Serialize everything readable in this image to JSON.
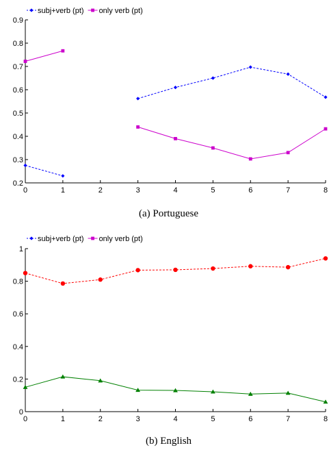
{
  "chart_data": [
    {
      "type": "line",
      "caption": "(a) Portuguese",
      "x": [
        0,
        1,
        2,
        3,
        4,
        5,
        6,
        7,
        8
      ],
      "xlim": [
        0,
        8
      ],
      "ylim": [
        0.2,
        0.9
      ],
      "xticks": [
        "0",
        "1",
        "2",
        "3",
        "4",
        "5",
        "6",
        "7",
        "8"
      ],
      "yticks": [
        "0.2",
        "0.3",
        "0.4",
        "0.5",
        "0.6",
        "0.7",
        "0.8",
        "0.9"
      ],
      "legend_position": "top-left, above plot",
      "grid": false,
      "series": [
        {
          "name": "subj+verb (pt)",
          "color": "#0000ff",
          "line_style": "dashed",
          "marker": "diamond",
          "values": [
            0.275,
            0.23,
            null,
            0.562,
            0.61,
            0.65,
            0.697,
            0.667,
            0.568
          ]
        },
        {
          "name": "only verb (pt)",
          "color": "#cc00cc",
          "line_style": "solid",
          "marker": "square",
          "values": [
            0.722,
            0.767,
            null,
            0.44,
            0.39,
            0.35,
            0.303,
            0.33,
            0.432
          ]
        }
      ]
    },
    {
      "type": "line",
      "caption": "(b) English",
      "x": [
        0,
        1,
        2,
        3,
        4,
        5,
        6,
        7,
        8
      ],
      "xlim": [
        0,
        8
      ],
      "ylim": [
        0,
        1
      ],
      "xticks": [
        "0",
        "1",
        "2",
        "3",
        "4",
        "5",
        "6",
        "7",
        "8"
      ],
      "yticks": [
        "0",
        "0.2",
        "0.4",
        "0.6",
        "0.8",
        "1"
      ],
      "legend_position": "top-left, above plot",
      "grid": false,
      "legend": [
        {
          "name": "subj+verb (pt)",
          "color": "#0000ff",
          "line_style": "dashed",
          "marker": "diamond"
        },
        {
          "name": "only verb (pt)",
          "color": "#cc00cc",
          "line_style": "solid",
          "marker": "square"
        }
      ],
      "series": [
        {
          "color": "#ff0000",
          "line_style": "dashed",
          "marker": "circle",
          "values": [
            0.85,
            0.786,
            0.81,
            0.868,
            0.87,
            0.878,
            0.892,
            0.886,
            0.94
          ]
        },
        {
          "color": "#008000",
          "line_style": "solid",
          "marker": "triangle",
          "values": [
            0.15,
            0.214,
            0.19,
            0.132,
            0.13,
            0.122,
            0.108,
            0.114,
            0.06
          ]
        }
      ]
    }
  ]
}
